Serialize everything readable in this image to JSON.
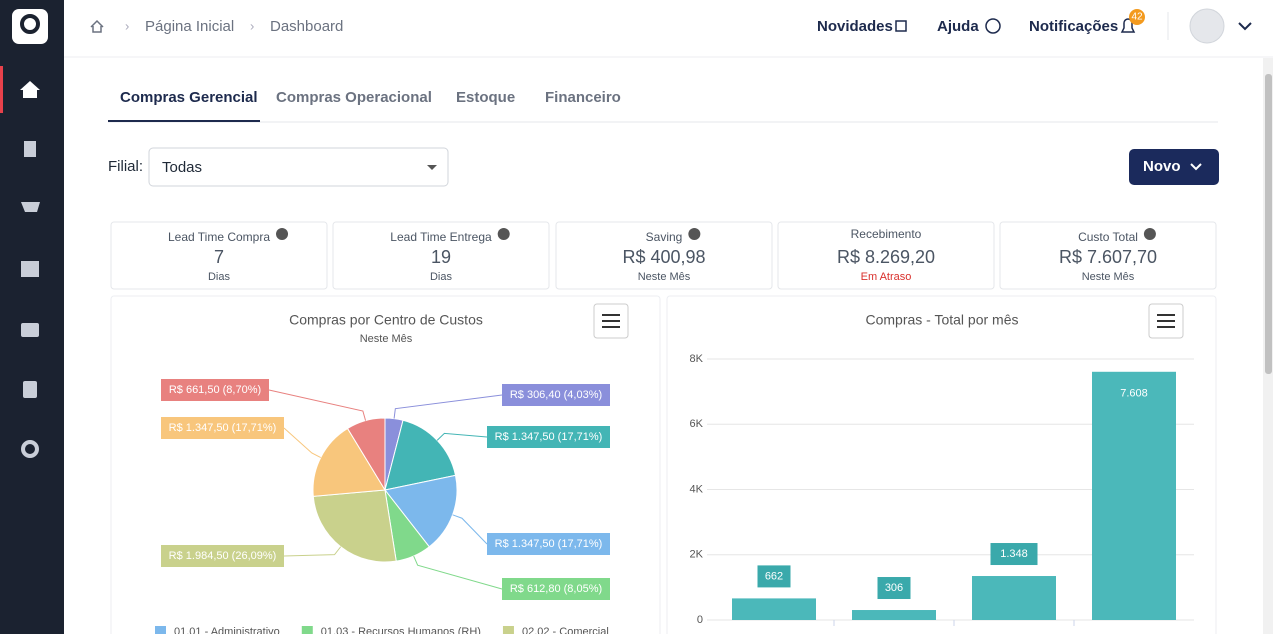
{
  "breadcrumb": [
    "Página Inicial",
    "Dashboard"
  ],
  "header": {
    "links": [
      "Novidades",
      "Ajuda",
      "Notificações"
    ],
    "notification_count": "42"
  },
  "tabs": [
    "Compras Gerencial",
    "Compras Operacional",
    "Estoque",
    "Financeiro"
  ],
  "filter": {
    "label": "Filial:",
    "value": "Todas"
  },
  "button": "Novo",
  "kpis": [
    {
      "title": "Lead Time Compra",
      "value": "7",
      "unit": "Dias",
      "help": true
    },
    {
      "title": "Lead Time Entrega",
      "value": "19",
      "unit": "Dias",
      "help": true
    },
    {
      "title": "Saving",
      "value": "R$ 400,98",
      "unit": "Neste Mês",
      "help": true
    },
    {
      "title": "Recebimento",
      "value": "R$ 8.269,20",
      "unit": "Em Atraso",
      "help": false
    },
    {
      "title": "Custo Total",
      "value": "R$ 7.607,70",
      "unit": "Neste Mês",
      "help": true
    }
  ],
  "chart_data": [
    {
      "type": "pie",
      "title": "Compras por Centro de Custos",
      "subtitle": "Neste Mês",
      "categories": [
        null,
        null,
        "01.01 - Administrativo",
        "01.03 - Recursos Humanos (RH)",
        "02.02 - Comercial",
        null,
        null
      ],
      "values": [
        306.4,
        1347.5,
        1347.5,
        612.8,
        1984.5,
        1347.5,
        661.5
      ],
      "value_labels": [
        "R$ 306,40 (4,03%)",
        "R$ 1.347,50 (17,71%)",
        "R$ 1.347,50 (17,71%)",
        "R$ 612,80 (8,05%)",
        "R$ 1.984,50 (26,09%)",
        "R$ 1.347,50 (17,71%)",
        "R$ 661,50 (8,70%)"
      ],
      "colors": [
        "#8a8fdb",
        "#43b5b5",
        "#7cb8ec",
        "#80d98b",
        "#c9d18c",
        "#f8c67c",
        "#e8817f"
      ]
    },
    {
      "type": "bar",
      "title": "Compras - Total por mês",
      "categories": [
        null,
        null,
        null,
        null
      ],
      "values": [
        662,
        306,
        1348,
        7608
      ],
      "value_labels": [
        "662",
        "306",
        "1.348",
        "7.608"
      ],
      "color": "#4bb8ba",
      "ylim": [
        0,
        8000
      ],
      "yticks": [
        0,
        {
          "value": 2000,
          "label": "2K"
        },
        {
          "value": 4000,
          "label": "4K"
        },
        {
          "value": 6000,
          "label": "6K"
        },
        {
          "value": 8000,
          "label": "8K"
        }
      ],
      "grid": true
    }
  ]
}
